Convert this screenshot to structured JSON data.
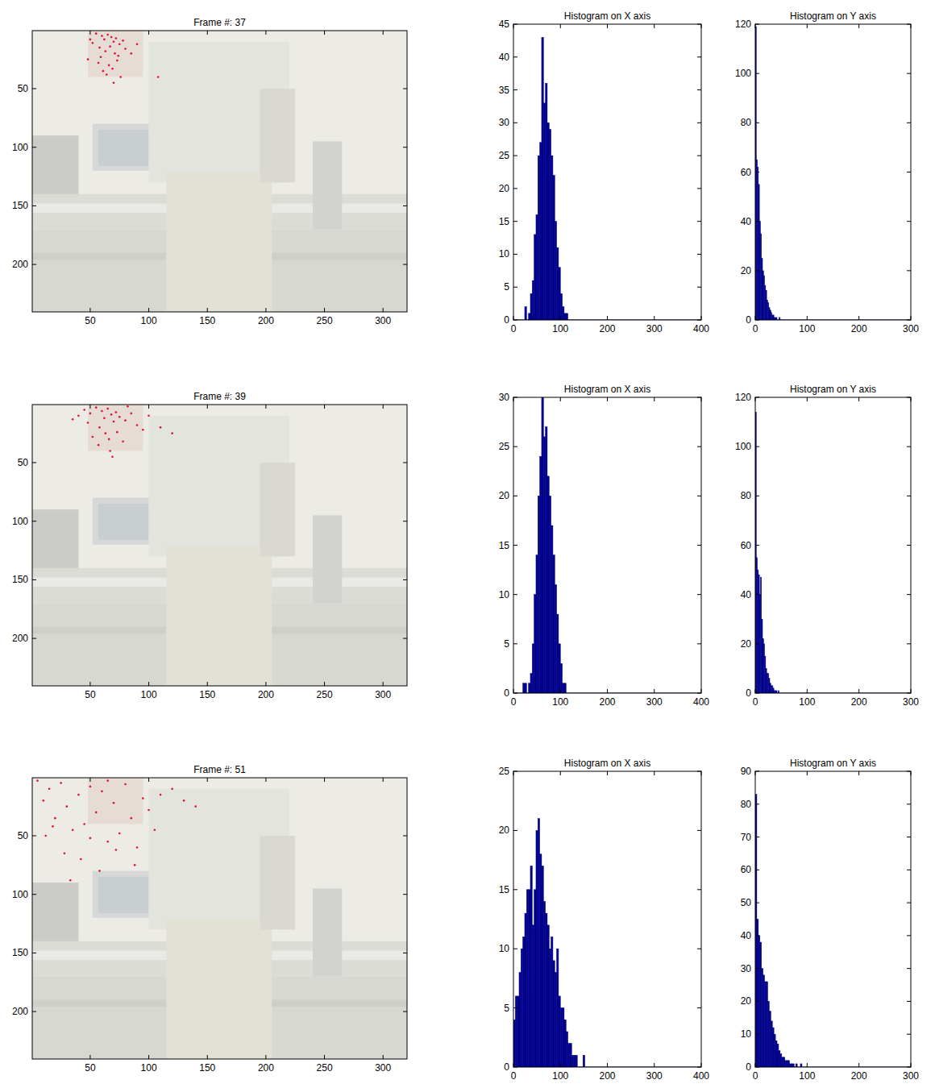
{
  "chart_data": [
    {
      "type": "image",
      "title": "Frame #: 37",
      "xlim": [
        0.5,
        320.5
      ],
      "ylim": [
        0.5,
        240.5
      ],
      "xticks": [
        50,
        100,
        150,
        200,
        250,
        300
      ],
      "yticks": [
        50,
        100,
        150,
        200
      ],
      "color": "#e0102a",
      "marker": "dot",
      "x": [
        55,
        60,
        62,
        65,
        68,
        70,
        72,
        75,
        58,
        63,
        67,
        71,
        74,
        78,
        80,
        52,
        48,
        57,
        66,
        69,
        73,
        61,
        64,
        85,
        90,
        50,
        76,
        59,
        70,
        108
      ],
      "values": [
        3,
        5,
        8,
        4,
        6,
        10,
        7,
        12,
        15,
        18,
        14,
        20,
        22,
        9,
        16,
        11,
        25,
        28,
        30,
        33,
        26,
        35,
        38,
        20,
        12,
        8,
        40,
        23,
        45,
        40
      ]
    },
    {
      "type": "histogram",
      "title": "Histogram on X axis",
      "xlim": [
        0,
        400
      ],
      "ylim": [
        0,
        45
      ],
      "xticks": [
        0,
        100,
        200,
        300,
        400
      ],
      "yticks": [
        0,
        5,
        10,
        15,
        20,
        25,
        30,
        35,
        40,
        45
      ],
      "color": "#00008b",
      "bins": [
        24,
        28,
        32,
        36,
        40,
        44,
        48,
        52,
        56,
        60,
        64,
        68,
        72,
        76,
        80,
        84,
        88,
        92,
        96,
        100,
        104,
        108,
        112,
        116
      ],
      "values": [
        2,
        0,
        1,
        4,
        6,
        13,
        16,
        25,
        27,
        43,
        33,
        36,
        30,
        29,
        25,
        22,
        15,
        11,
        8,
        4,
        2,
        1,
        1
      ]
    },
    {
      "type": "histogram",
      "title": "Histogram on Y axis",
      "xlim": [
        0,
        300
      ],
      "ylim": [
        0,
        120
      ],
      "xticks": [
        0,
        100,
        200,
        300
      ],
      "yticks": [
        0,
        20,
        40,
        60,
        80,
        100,
        120
      ],
      "color": "#00008b",
      "bins": [
        0,
        2,
        4,
        6,
        8,
        10,
        12,
        14,
        16,
        18,
        20,
        22,
        24,
        26,
        28,
        30,
        32,
        34,
        36,
        38,
        40,
        42,
        44,
        46,
        48,
        50
      ],
      "values": [
        119,
        65,
        62,
        55,
        40,
        35,
        25,
        20,
        18,
        14,
        12,
        8,
        7,
        5,
        4,
        3,
        2,
        2,
        1,
        1,
        1,
        0,
        0,
        1,
        0
      ]
    },
    {
      "type": "image",
      "title": "Frame #: 39",
      "xlim": [
        0.5,
        320.5
      ],
      "ylim": [
        0.5,
        240.5
      ],
      "xticks": [
        50,
        100,
        150,
        200,
        250,
        300
      ],
      "yticks": [
        50,
        100,
        150,
        200
      ],
      "color": "#e0102a",
      "marker": "dot",
      "x": [
        40,
        45,
        50,
        55,
        60,
        62,
        65,
        68,
        70,
        72,
        75,
        80,
        85,
        90,
        95,
        100,
        58,
        63,
        66,
        52,
        48,
        73,
        78,
        35,
        110,
        120,
        67,
        57,
        69,
        82
      ],
      "values": [
        10,
        5,
        8,
        3,
        6,
        12,
        4,
        9,
        15,
        7,
        11,
        14,
        8,
        18,
        22,
        10,
        20,
        25,
        30,
        28,
        16,
        24,
        32,
        13,
        20,
        25,
        40,
        35,
        45,
        2
      ]
    },
    {
      "type": "histogram",
      "title": "Histogram on X axis",
      "xlim": [
        0,
        400
      ],
      "ylim": [
        0,
        30
      ],
      "xticks": [
        0,
        100,
        200,
        300,
        400
      ],
      "yticks": [
        0,
        5,
        10,
        15,
        20,
        25,
        30
      ],
      "color": "#00008b",
      "bins": [
        20,
        24,
        28,
        32,
        36,
        40,
        44,
        48,
        52,
        56,
        60,
        64,
        68,
        72,
        76,
        80,
        84,
        88,
        92,
        96,
        100,
        104,
        108,
        112,
        116
      ],
      "values": [
        1,
        1,
        0,
        1,
        2,
        5,
        10,
        14,
        20,
        24,
        30,
        26,
        27,
        22,
        20,
        17,
        14,
        11,
        8,
        5,
        3,
        1,
        1,
        0
      ]
    },
    {
      "type": "histogram",
      "title": "Histogram on Y axis",
      "xlim": [
        0,
        300
      ],
      "ylim": [
        0,
        120
      ],
      "xticks": [
        0,
        100,
        200,
        300
      ],
      "yticks": [
        0,
        20,
        40,
        60,
        80,
        100,
        120
      ],
      "color": "#00008b",
      "bins": [
        0,
        2,
        4,
        6,
        8,
        10,
        12,
        14,
        16,
        18,
        20,
        22,
        24,
        26,
        28,
        30,
        32,
        34,
        36,
        38,
        40,
        42,
        44,
        46,
        48,
        50,
        52,
        54,
        56,
        58,
        60
      ],
      "values": [
        114,
        55,
        50,
        48,
        40,
        47,
        30,
        22,
        20,
        15,
        10,
        8,
        8,
        6,
        4,
        3,
        3,
        2,
        1,
        1,
        1,
        0,
        1,
        0,
        0,
        0,
        0,
        0,
        0,
        0
      ]
    },
    {
      "type": "image",
      "title": "Frame #: 51",
      "xlim": [
        0.5,
        320.5
      ],
      "ylim": [
        0.5,
        240.5
      ],
      "xticks": [
        50,
        100,
        150,
        200,
        250,
        300
      ],
      "yticks": [
        50,
        100,
        150,
        200
      ],
      "color": "#e0102a",
      "marker": "dot",
      "x": [
        5,
        10,
        15,
        20,
        25,
        30,
        35,
        40,
        45,
        50,
        55,
        60,
        65,
        70,
        75,
        80,
        85,
        90,
        95,
        100,
        110,
        120,
        130,
        140,
        12,
        28,
        42,
        58,
        72,
        88,
        18,
        50,
        33,
        65,
        105
      ],
      "values": [
        3,
        20,
        10,
        35,
        5,
        25,
        45,
        15,
        40,
        8,
        30,
        12,
        55,
        22,
        48,
        6,
        35,
        60,
        18,
        28,
        15,
        10,
        20,
        25,
        50,
        65,
        70,
        80,
        62,
        75,
        42,
        52,
        88,
        3,
        45
      ]
    },
    {
      "type": "histogram",
      "title": "Histogram on X axis",
      "xlim": [
        0,
        400
      ],
      "ylim": [
        0,
        25
      ],
      "xticks": [
        0,
        100,
        200,
        300,
        400
      ],
      "yticks": [
        0,
        5,
        10,
        15,
        20,
        25
      ],
      "color": "#00008b",
      "bins": [
        0,
        4,
        8,
        12,
        16,
        20,
        24,
        28,
        32,
        36,
        40,
        44,
        48,
        52,
        56,
        60,
        64,
        68,
        72,
        76,
        80,
        84,
        88,
        92,
        96,
        100,
        104,
        108,
        112,
        116,
        120,
        124,
        128,
        132,
        136,
        140,
        144,
        148,
        152
      ],
      "values": [
        4,
        6,
        6,
        8,
        10,
        11,
        13,
        15,
        15,
        17,
        12,
        15,
        20,
        21,
        18,
        17,
        14,
        13,
        12,
        10,
        11,
        9,
        8,
        10,
        6,
        5,
        5,
        4,
        3,
        2,
        2,
        1,
        1,
        1,
        0,
        0,
        0,
        1
      ]
    },
    {
      "type": "histogram",
      "title": "Histogram on Y axis",
      "xlim": [
        0,
        300
      ],
      "ylim": [
        0,
        90
      ],
      "xticks": [
        0,
        100,
        200,
        300
      ],
      "yticks": [
        0,
        10,
        20,
        30,
        40,
        50,
        60,
        70,
        80,
        90
      ],
      "color": "#00008b",
      "bins": [
        0,
        3,
        6,
        9,
        12,
        15,
        18,
        21,
        24,
        27,
        30,
        33,
        36,
        39,
        42,
        45,
        48,
        51,
        54,
        57,
        60,
        63,
        66,
        69,
        72,
        75,
        78,
        81,
        84,
        87,
        90
      ],
      "values": [
        83,
        45,
        40,
        38,
        30,
        28,
        26,
        26,
        20,
        17,
        14,
        12,
        10,
        8,
        7,
        5,
        4,
        3,
        3,
        2,
        2,
        2,
        1,
        1,
        1,
        0,
        1,
        0,
        0,
        1
      ]
    }
  ]
}
